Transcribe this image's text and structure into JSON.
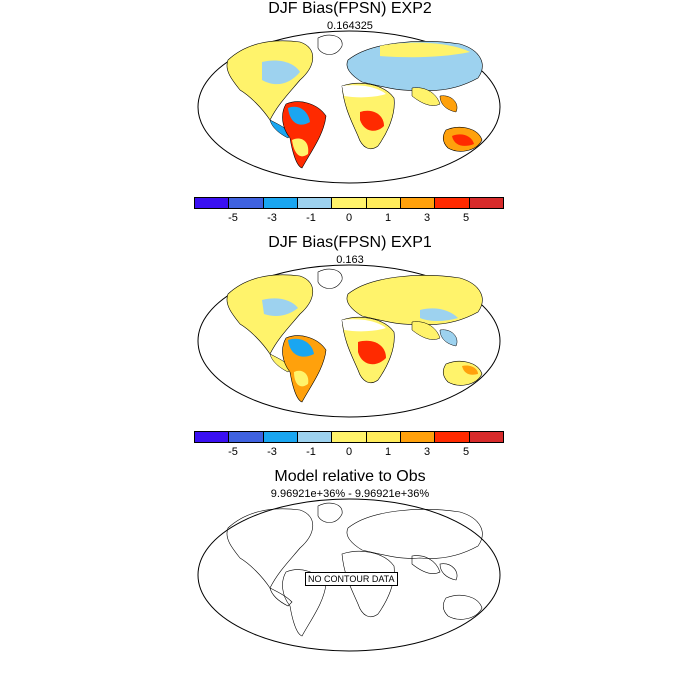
{
  "panels": [
    {
      "title": "DJF Bias(FPSN) EXP2",
      "subtitle": "0.164325",
      "has_data": true
    },
    {
      "title": "DJF Bias(FPSN) EXP1",
      "subtitle": "0.163",
      "has_data": true
    },
    {
      "title": "Model relative to Obs",
      "subtitle": "9.96921e+36% - 9.96921e+36%",
      "has_data": false,
      "nodata_label": "NO CONTOUR DATA"
    }
  ],
  "colorbar": {
    "colors": [
      "#3a10f2",
      "#3f62e0",
      "#1aa6f1",
      "#9dd2ef",
      "#fff36b",
      "#ffec5c",
      "#ffa10c",
      "#ff2a00",
      "#d72b2b"
    ],
    "labels": [
      "-5",
      "-3",
      "-1",
      "0",
      "1",
      "3",
      "5"
    ]
  }
}
